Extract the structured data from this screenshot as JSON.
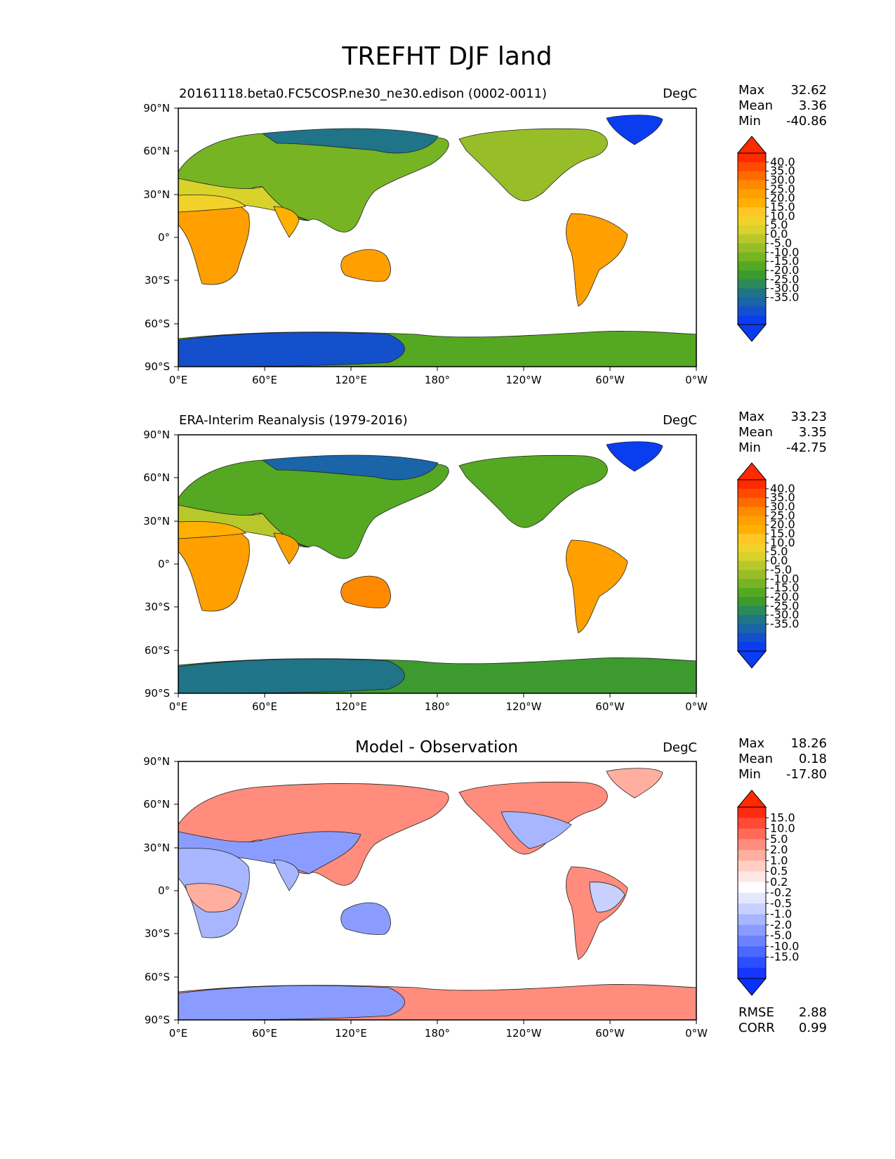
{
  "suptitle": "TREFHT DJF land",
  "x_ticks": [
    "0°E",
    "60°E",
    "120°E",
    "180°",
    "120°W",
    "60°W",
    "0°W"
  ],
  "y_ticks": [
    "90°N",
    "60°N",
    "30°N",
    "0°",
    "30°S",
    "60°S",
    "90°S"
  ],
  "stat_labels": {
    "max": "Max",
    "mean": "Mean",
    "min": "Min",
    "rmse": "RMSE",
    "corr": "CORR"
  },
  "panels": [
    {
      "title_left": "20161118.beta0.FC5COSP.ne30_ne30.edison (0002-0011)",
      "title_center": "",
      "units": "DegC",
      "stats": {
        "max": "32.62",
        "mean": "3.36",
        "min": "-40.86"
      },
      "colorbar_labels": [
        "40.0",
        "35.0",
        "30.0",
        "25.0",
        "20.0",
        "15.0",
        "10.0",
        "5.0",
        "0.0",
        "-5.0",
        "-10.0",
        "-15.0",
        "-20.0",
        "-25.0",
        "-30.0",
        "-35.0"
      ],
      "colorbar_colors": [
        "#ff2a00",
        "#ff4a00",
        "#ff6a00",
        "#ff8a00",
        "#ffa000",
        "#ffb000",
        "#ffc626",
        "#f2d12a",
        "#d9d22a",
        "#b8c82a",
        "#97be28",
        "#76b424",
        "#55a822",
        "#3d9a2e",
        "#2b8a5a",
        "#1f7488",
        "#1a64a8",
        "#1450cc",
        "#0a3cf0"
      ],
      "colorbar_over": "#ff2a00",
      "colorbar_under": "#0a3cf0"
    },
    {
      "title_left": "ERA-Interim Reanalysis (1979-2016)",
      "title_center": "",
      "units": "DegC",
      "stats": {
        "max": "33.23",
        "mean": "3.35",
        "min": "-42.75"
      },
      "colorbar_labels": [
        "40.0",
        "35.0",
        "30.0",
        "25.0",
        "20.0",
        "15.0",
        "10.0",
        "5.0",
        "0.0",
        "-5.0",
        "-10.0",
        "-15.0",
        "-20.0",
        "-25.0",
        "-30.0",
        "-35.0"
      ],
      "colorbar_colors": [
        "#ff2a00",
        "#ff4a00",
        "#ff6a00",
        "#ff8a00",
        "#ffa000",
        "#ffb000",
        "#ffc626",
        "#f2d12a",
        "#d9d22a",
        "#b8c82a",
        "#97be28",
        "#76b424",
        "#55a822",
        "#3d9a2e",
        "#2b8a5a",
        "#1f7488",
        "#1a64a8",
        "#1450cc",
        "#0a3cf0"
      ],
      "colorbar_over": "#ff2a00",
      "colorbar_under": "#0a3cf0"
    },
    {
      "title_left": "",
      "title_center": "Model - Observation",
      "units": "DegC",
      "stats": {
        "max": "18.26",
        "mean": "0.18",
        "min": "-17.80",
        "rmse": "2.88",
        "corr": "0.99"
      },
      "colorbar_labels": [
        "15.0",
        "10.0",
        "5.0",
        "2.0",
        "1.0",
        "0.5",
        "0.2",
        "-0.2",
        "-0.5",
        "-1.0",
        "-2.0",
        "-5.0",
        "-10.0",
        "-15.0"
      ],
      "colorbar_colors": [
        "#ff2a12",
        "#ff4a36",
        "#ff6b58",
        "#ff8c7c",
        "#ffaea0",
        "#ffcfc6",
        "#ffe8e4",
        "#ffffff",
        "#e4e8ff",
        "#c8d0ff",
        "#a8b6ff",
        "#8a9cff",
        "#6b82ff",
        "#4c68ff",
        "#2c4eff",
        "#1436ff"
      ],
      "colorbar_over": "#ff2a00",
      "colorbar_under": "#0a30ff"
    }
  ]
}
